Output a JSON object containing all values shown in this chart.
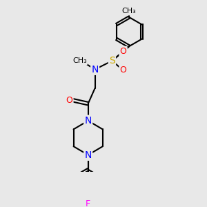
{
  "bg_color": "#e8e8e8",
  "atom_colors": {
    "C": "#000000",
    "N": "#0000ff",
    "O": "#ff0000",
    "S": "#ccaa00",
    "F": "#ff00ff",
    "H": "#000000"
  },
  "bond_color": "#000000",
  "title": "",
  "figsize": [
    3.0,
    3.0
  ],
  "dpi": 100
}
